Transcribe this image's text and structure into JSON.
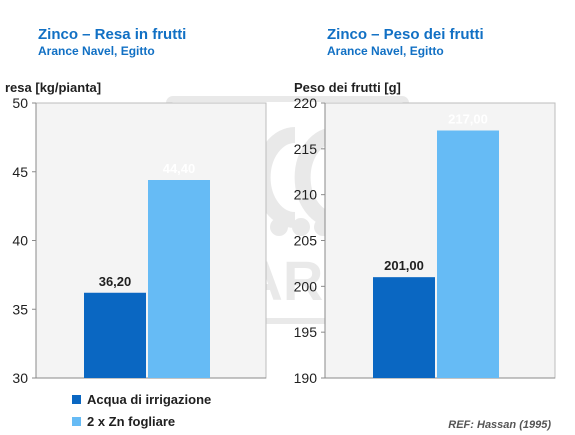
{
  "colors": {
    "title": "#1170c4",
    "series_dark": "#0a67c2",
    "series_light": "#66bbf5",
    "plot_bg": "#f4f4f4",
    "grid": "#c8c8c8"
  },
  "legend": {
    "items": [
      {
        "label": "Acqua di irrigazione",
        "color": "#0a67c2"
      },
      {
        "label": "2 x Zn fogliare",
        "color": "#66bbf5"
      }
    ]
  },
  "reference": "REF: Hassan  (1995)",
  "watermark_icon": "yara-logo-icon",
  "watermark_text": "YARA",
  "chart_data": [
    {
      "type": "bar",
      "title": "Zinco – Resa in frutti",
      "subtitle": "Arance Navel, Egitto",
      "ylabel": "resa [kg/pianta]",
      "xlabel": "",
      "ylim": [
        30,
        50
      ],
      "yticks": [
        30,
        35,
        40,
        45,
        50
      ],
      "categories": [
        "Acqua di irrigazione",
        "2 x Zn fogliare"
      ],
      "values": [
        36.2,
        44.4
      ],
      "value_labels": [
        "36,20",
        "44,40"
      ],
      "grid": false
    },
    {
      "type": "bar",
      "title": "Zinco – Peso dei frutti",
      "subtitle": "Arance Navel, Egitto",
      "ylabel": "Peso dei frutti [g]",
      "xlabel": "",
      "ylim": [
        190,
        220
      ],
      "yticks": [
        190,
        195,
        200,
        205,
        210,
        215,
        220
      ],
      "categories": [
        "Acqua di irrigazione",
        "2 x Zn fogliare"
      ],
      "values": [
        201.0,
        217.0
      ],
      "value_labels": [
        "201,00",
        "217,00"
      ],
      "grid": false
    }
  ]
}
